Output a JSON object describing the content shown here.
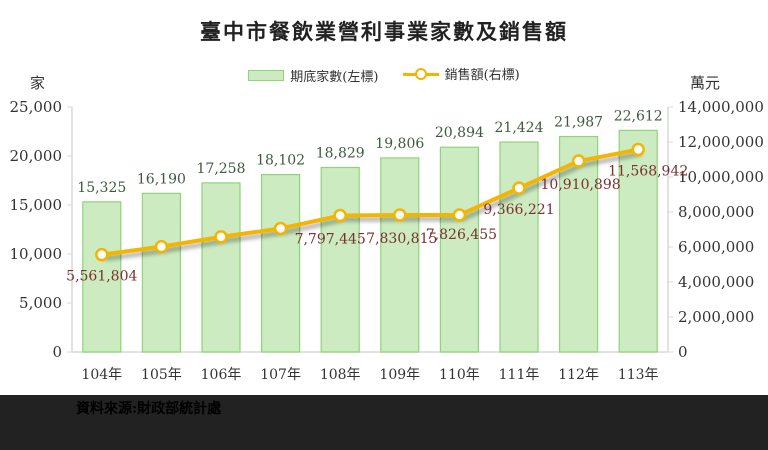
{
  "title": "臺中市餐飲業營利事業家數及銷售額",
  "legend": {
    "bar": "期底家數(左標)",
    "line": "銷售額(右標)"
  },
  "left_unit": "家",
  "right_unit": "萬元",
  "source": "資料來源:財政部統計處",
  "colors": {
    "bar_fill": "#cdebc0",
    "bar_stroke": "#8fd37a",
    "line": "#f5b400",
    "bar_label": "#3d5a3d",
    "line_label": "#7a3030"
  },
  "chart_data": {
    "type": "bar+line",
    "title": "臺中市餐飲業營利事業家數及銷售額",
    "categories": [
      "104年",
      "105年",
      "106年",
      "107年",
      "108年",
      "109年",
      "110年",
      "111年",
      "112年",
      "113年"
    ],
    "series": [
      {
        "name": "期底家數(左標)",
        "type": "bar",
        "axis": "left",
        "values": [
          15325,
          16190,
          17258,
          18102,
          18829,
          19806,
          20894,
          21424,
          21987,
          22612
        ]
      },
      {
        "name": "銷售額(右標)",
        "type": "line",
        "axis": "right",
        "values": [
          5561804,
          6022000,
          6580000,
          7060000,
          7797445,
          7830815,
          7826455,
          9366221,
          10910898,
          11568942
        ]
      }
    ],
    "labels": {
      "bar": [
        "15,325",
        "16,190",
        "17,258",
        "18,102",
        "18,829",
        "19,806",
        "20,894",
        "21,424",
        "21,987",
        "22,612"
      ],
      "line": [
        "5,561,804",
        "",
        "",
        "",
        "7,797,445",
        "7,830,815",
        "7,826,455",
        "9,366,221",
        "10,910,898",
        "11,568,942"
      ]
    },
    "ylabel_left": "家",
    "ylabel_right": "萬元",
    "ylim_left": [
      0,
      25000
    ],
    "yticks_left": [
      "0",
      "5,000",
      "10,000",
      "15,000",
      "20,000",
      "25,000"
    ],
    "ylim_right": [
      0,
      14000000
    ],
    "yticks_right": [
      "0",
      "2,000,000",
      "4,000,000",
      "6,000,000",
      "8,000,000",
      "10,000,000",
      "12,000,000",
      "14,000,000"
    ],
    "grid": false,
    "legend_position": "top"
  }
}
